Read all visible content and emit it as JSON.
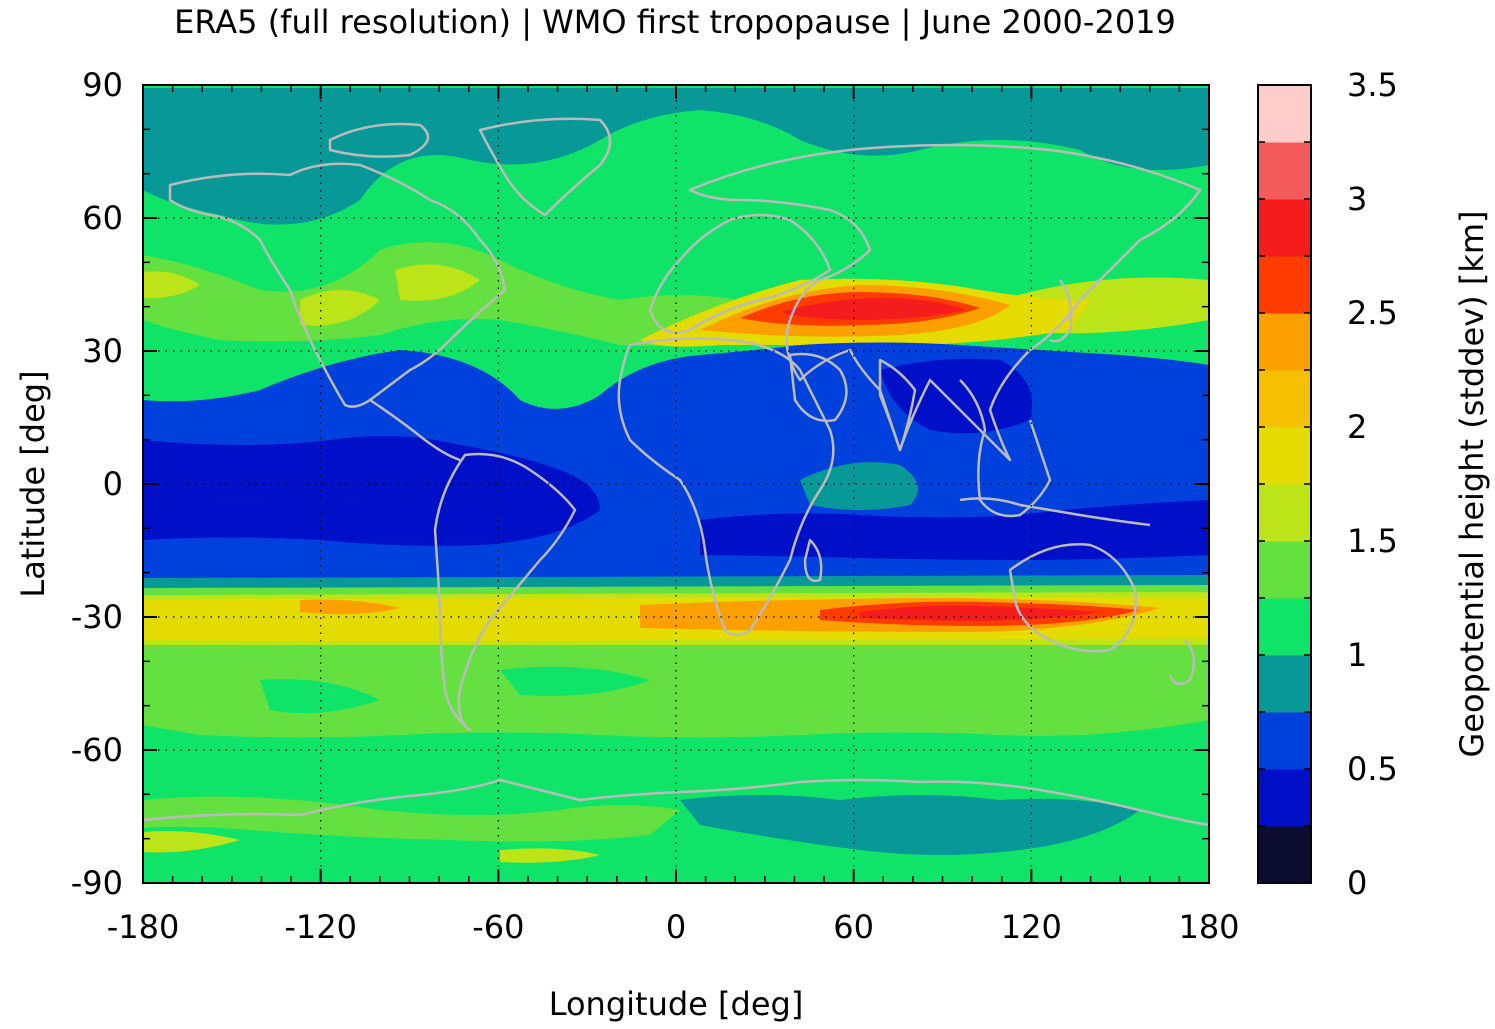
{
  "title": "ERA5 (full resolution) | WMO first tropopause | June 2000-2019",
  "map": {
    "xlabel": "Longitude [deg]",
    "ylabel": "Latitude [deg]",
    "xlim": [
      -180,
      180
    ],
    "ylim": [
      -90,
      90
    ],
    "x_ticks": [
      "-180",
      "-120",
      "-60",
      "0",
      "60",
      "120",
      "180"
    ],
    "y_ticks": [
      "90",
      "60",
      "30",
      "0",
      "-30",
      "-60",
      "-90"
    ],
    "grid": true,
    "coastline_color": "#bbbbbb",
    "field_description_levels": {
      "tropical_band": "0.25-0.5",
      "subtropical_jet_nh_peak": "2.75-3.0",
      "subtropical_jet_sh_peak": "2.75-3.0"
    }
  },
  "colorbar": {
    "label": "Geopotential height (stddev) [km]",
    "tick_labels": [
      "3.5",
      "3",
      "2.5",
      "2",
      "1.5",
      "1",
      "0.5",
      "0"
    ],
    "range": [
      0,
      3.5
    ],
    "levels": [
      0,
      0.25,
      0.5,
      0.75,
      1.0,
      1.25,
      1.5,
      1.75,
      2.0,
      2.25,
      2.5,
      2.75,
      3.0,
      3.25,
      3.5
    ],
    "colors": [
      "#0c0c30",
      "#0010c8",
      "#0040dc",
      "#089898",
      "#10e468",
      "#64e040",
      "#bce418",
      "#e4dc00",
      "#f4c000",
      "#fca000",
      "#ff3c00",
      "#f41c1c",
      "#f45a5a",
      "#ffcccc"
    ]
  }
}
